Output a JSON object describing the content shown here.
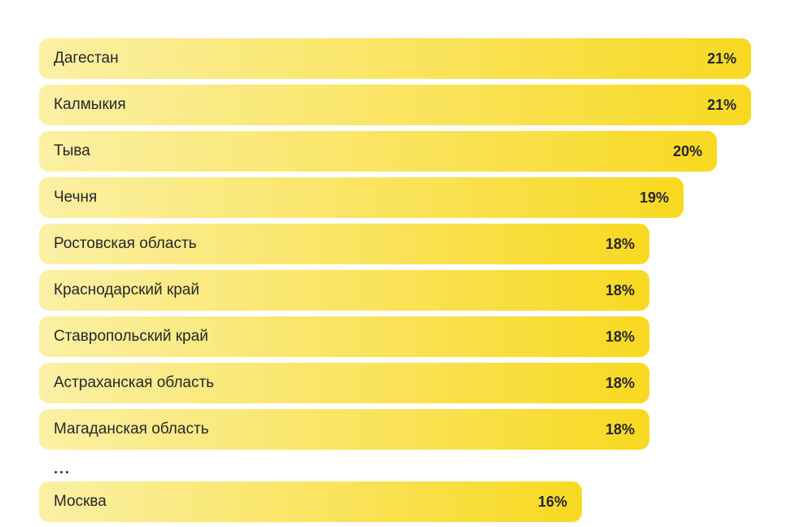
{
  "colors": {
    "background": "#FFFFFF",
    "bar_gradient_start": "#FBF0A4",
    "bar_gradient_end": "#F8D921",
    "text": "#26262B"
  },
  "chart_data": {
    "type": "bar",
    "orientation": "horizontal",
    "title": "",
    "xlabel": "",
    "ylabel": "",
    "xlim": [
      0,
      21
    ],
    "grid": false,
    "legend": "none",
    "categories": [
      "Дагестан",
      "Калмыкия",
      "Тыва",
      "Чечня",
      "Ростовская область",
      "Краснодарский край",
      "Ставропольский край",
      "Астраханская область",
      "Магаданская область",
      "Москва"
    ],
    "values": [
      21,
      21,
      20,
      19,
      18,
      18,
      18,
      18,
      18,
      16
    ],
    "value_labels": [
      "21%",
      "21%",
      "20%",
      "19%",
      "18%",
      "18%",
      "18%",
      "18%",
      "18%",
      "16%"
    ],
    "ellipsis_after_index": 8,
    "ellipsis_label": "..."
  }
}
